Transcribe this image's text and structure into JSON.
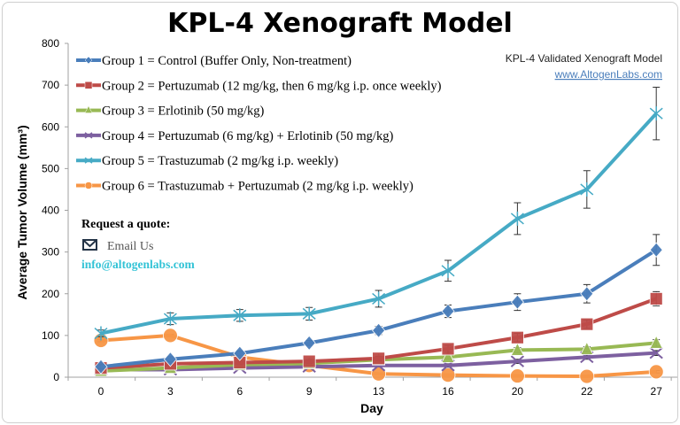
{
  "chart_data": {
    "type": "line",
    "title": "KPL-4 Xenograft Model",
    "xlabel": "Day",
    "ylabel": "Average Tumor Volume (mm³)",
    "categories": [
      "0",
      "3",
      "6",
      "9",
      "13",
      "16",
      "20",
      "22",
      "27"
    ],
    "ylim": [
      0,
      800
    ],
    "yticks": [
      0,
      100,
      200,
      300,
      400,
      500,
      600,
      700,
      800
    ],
    "grid": false,
    "legend_position": "top-left",
    "series": [
      {
        "name": "Group 1 = Control (Buffer Only, Non-treatment)",
        "color": "#4a7ebb",
        "marker": "diamond",
        "values": [
          25,
          43,
          57,
          82,
          112,
          158,
          180,
          200,
          305
        ],
        "errors": [
          5,
          6,
          6,
          6,
          10,
          15,
          20,
          22,
          37
        ]
      },
      {
        "name": "Group 2 = Pertuzumab (12 mg/kg, then 6 mg/kg i.p. once weekly)",
        "color": "#be4b48",
        "marker": "square",
        "values": [
          22,
          32,
          35,
          38,
          45,
          68,
          95,
          127,
          188
        ],
        "errors": [
          4,
          4,
          4,
          4,
          5,
          8,
          10,
          10,
          17
        ]
      },
      {
        "name": "Group 3 = Erlotinib (50 mg/kg)",
        "color": "#98b954",
        "marker": "triangle",
        "values": [
          15,
          22,
          30,
          33,
          42,
          48,
          65,
          67,
          82
        ],
        "errors": [
          3,
          3,
          3,
          3,
          4,
          5,
          6,
          6,
          8
        ]
      },
      {
        "name": "Group 4 = Pertuzumab  (6 mg/kg) + Erlotinib (50 mg/kg)",
        "color": "#7d60a0",
        "marker": "x",
        "values": [
          18,
          18,
          22,
          25,
          28,
          28,
          38,
          48,
          58
        ],
        "errors": [
          3,
          3,
          3,
          3,
          3,
          4,
          5,
          5,
          6
        ]
      },
      {
        "name": "Group 5 = Trastuzumab (2 mg/kg i.p. weekly)",
        "color": "#46aac5",
        "marker": "star",
        "values": [
          105,
          140,
          148,
          152,
          188,
          255,
          380,
          450,
          632
        ],
        "errors": [
          8,
          14,
          14,
          15,
          20,
          25,
          38,
          45,
          63
        ]
      },
      {
        "name": "Group 6 = Trastuzumab + Pertuzumab (2 mg/kg i.p. weekly)",
        "color": "#f79646",
        "marker": "circle",
        "values": [
          88,
          100,
          48,
          28,
          8,
          5,
          3,
          2,
          13
        ],
        "errors": [
          3,
          3,
          3,
          3,
          2,
          2,
          2,
          2,
          3
        ]
      }
    ]
  },
  "watermark": {
    "text": "KPL-4 Validated Xenograft Model",
    "link": "www.AltogenLabs.com"
  },
  "quote": {
    "heading": "Request a quote:",
    "email_label": "Email Us",
    "email": "info@altogenlabs.com",
    "icon": "envelope-icon"
  }
}
